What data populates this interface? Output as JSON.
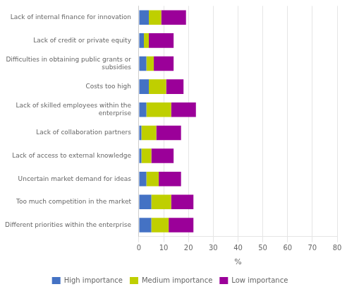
{
  "chart_data": {
    "type": "bar",
    "orientation": "horizontal",
    "stacked": true,
    "categories": [
      "Lack of internal finance for innovation",
      "Lack of credit or private equity",
      "Difficulties in obtaining public grants or\nsubsidies",
      "Costs too high",
      "Lack of skilled employees within the\nenterprise",
      "Lack of collaboration partners",
      "Lack of access to external knowledge",
      "Uncertain market demand for ideas",
      "Too much competition in the market",
      "Different priorities within the enterprise"
    ],
    "series": [
      {
        "name": "High importance",
        "color": "#4472C4",
        "values": [
          4,
          2,
          3,
          4,
          3,
          1,
          1,
          3,
          5,
          5
        ]
      },
      {
        "name": "Medium importance",
        "color": "#BFCF00",
        "values": [
          5,
          2,
          3,
          7,
          10,
          6,
          4,
          5,
          8,
          7
        ]
      },
      {
        "name": "Low importance",
        "color": "#9B0099",
        "values": [
          10,
          10,
          8,
          7,
          10,
          10,
          9,
          9,
          9,
          10
        ]
      }
    ],
    "xlabel": "%",
    "xlim": [
      0,
      80
    ],
    "xticks": [
      0,
      10,
      20,
      30,
      40,
      50,
      60,
      70,
      80
    ],
    "grid": true,
    "legend": "bottom"
  }
}
